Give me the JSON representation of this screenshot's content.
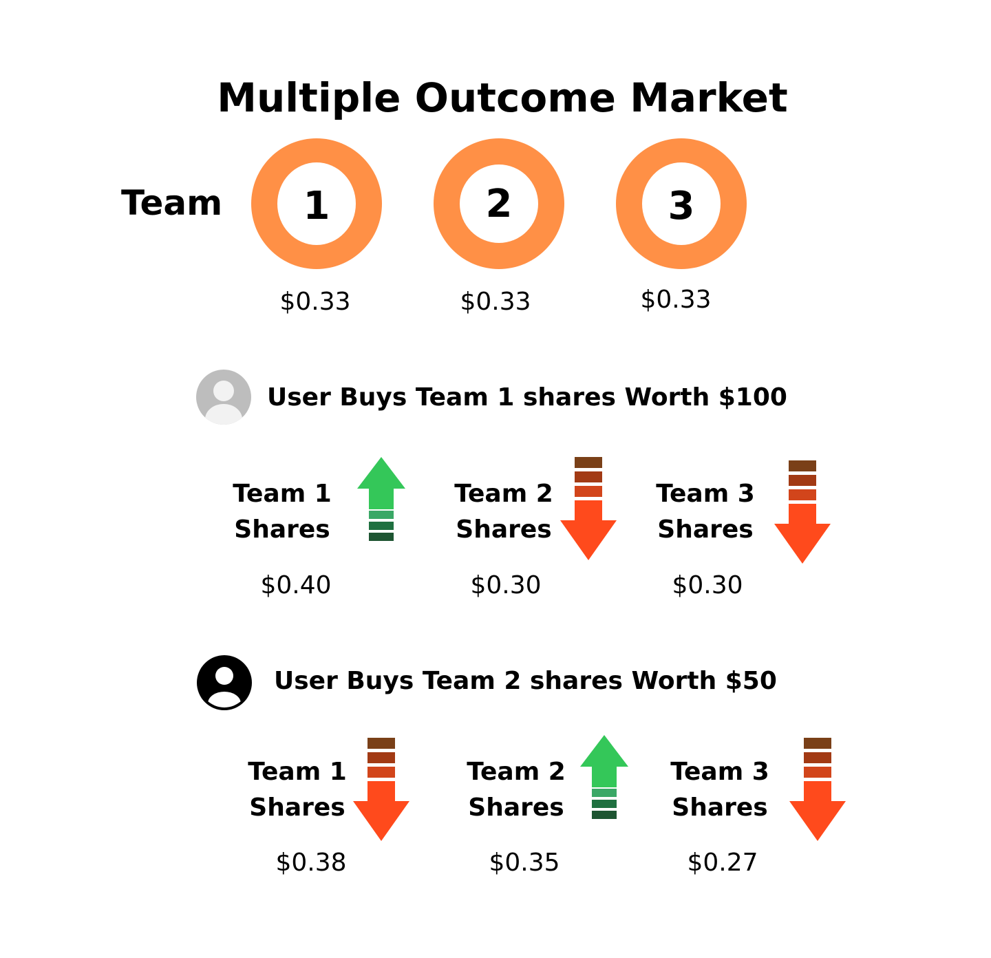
{
  "title": "Multiple Outcome Market",
  "team_label": "Team",
  "initial": [
    {
      "number": "1",
      "price": "$0.33"
    },
    {
      "number": "2",
      "price": "$0.33"
    },
    {
      "number": "3",
      "price": "$0.33"
    }
  ],
  "steps": [
    {
      "action": "User Buys Team 1 shares Worth $100",
      "avatar_icon": "user-avatar-gray-icon",
      "outcomes": [
        {
          "label_line1": "Team 1",
          "label_line2": "Shares",
          "direction": "up",
          "price": "$0.40"
        },
        {
          "label_line1": "Team 2",
          "label_line2": "Shares",
          "direction": "down",
          "price": "$0.30"
        },
        {
          "label_line1": "Team 3",
          "label_line2": "Shares",
          "direction": "down",
          "price": "$0.30"
        }
      ]
    },
    {
      "action": "User Buys Team 2 shares Worth $50",
      "avatar_icon": "user-avatar-black-icon",
      "outcomes": [
        {
          "label_line1": "Team 1",
          "label_line2": "Shares",
          "direction": "down",
          "price": "$0.38"
        },
        {
          "label_line1": "Team 2",
          "label_line2": "Shares",
          "direction": "up",
          "price": "$0.35"
        },
        {
          "label_line1": "Team 3",
          "label_line2": "Shares",
          "direction": "down",
          "price": "$0.27"
        }
      ]
    }
  ],
  "colors": {
    "ring": "#ff9046",
    "up_arrow": "#34c759",
    "down_arrow": "#ff4a1c",
    "up_bars": [
      "#3aa866",
      "#1f7040",
      "#1e5532"
    ],
    "down_bars": [
      "#7a4018",
      "#a23a14",
      "#d2451b"
    ]
  }
}
